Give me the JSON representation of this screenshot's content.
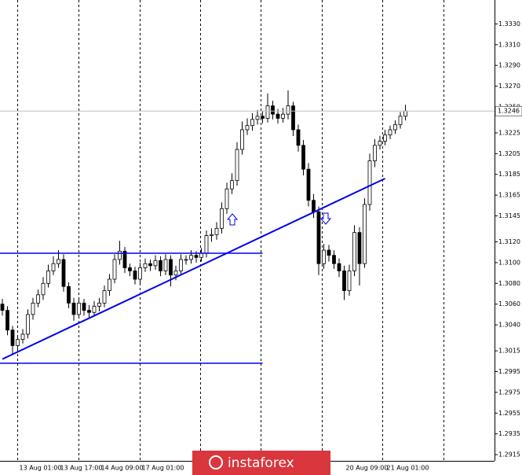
{
  "chart_data": {
    "type": "candlestick",
    "categories": [
      null,
      null,
      null,
      "13 Aug 01:00",
      null,
      null,
      null,
      null,
      null,
      null,
      null,
      "13 Aug 17:00",
      null,
      null,
      null,
      null,
      null,
      null,
      null,
      "14 Aug 09:00",
      null,
      null,
      null,
      null,
      null,
      null,
      null,
      "17 Aug 01:00",
      null,
      null,
      null,
      null,
      null,
      null,
      null,
      null,
      null,
      null,
      null,
      null,
      null,
      null,
      null,
      null,
      null,
      null,
      null,
      null,
      null,
      null,
      null,
      null,
      null,
      null,
      null,
      null,
      null,
      null,
      null,
      null,
      null,
      null,
      null,
      null,
      null,
      null,
      null,
      "20 Aug 09:00",
      null,
      null,
      null,
      null,
      null,
      null,
      null,
      "21 Aug 01:00",
      null,
      null,
      null,
      null
    ],
    "open": [
      1.306,
      1.3054,
      1.3035,
      1.302,
      1.3026,
      1.3031,
      1.305,
      1.3061,
      1.3069,
      1.308,
      1.3092,
      1.3099,
      1.3103,
      1.3077,
      1.3061,
      1.305,
      1.3061,
      1.3054,
      1.3052,
      1.3058,
      1.3061,
      1.3073,
      1.3084,
      1.3103,
      1.3111,
      1.3095,
      1.3092,
      1.3084,
      1.3095,
      1.3099,
      1.3097,
      1.3102,
      1.3092,
      1.3103,
      1.3088,
      1.3092,
      1.3103,
      1.3103,
      1.3107,
      1.3105,
      1.3109,
      1.3126,
      1.3127,
      1.3133,
      1.3152,
      1.3171,
      1.3179,
      1.3209,
      1.3228,
      1.3232,
      1.3238,
      1.3241,
      1.3239,
      1.3251,
      1.3243,
      1.3239,
      1.3243,
      1.3251,
      1.3228,
      1.3213,
      1.319,
      1.316,
      1.3149,
      1.3099,
      1.3112,
      1.3107,
      1.3099,
      1.3092,
      1.3073,
      1.3092,
      1.3129,
      1.3099,
      1.3156,
      1.3198,
      1.3213,
      1.3217,
      1.3223,
      1.3228,
      1.3233,
      1.3241
    ],
    "high": [
      1.3065,
      1.3058,
      1.3039,
      1.303,
      1.3036,
      1.3055,
      1.3066,
      1.3074,
      1.3086,
      1.3098,
      1.3106,
      1.3112,
      1.3108,
      1.3081,
      1.3066,
      1.3066,
      1.3065,
      1.3059,
      1.3063,
      1.3066,
      1.3078,
      1.3089,
      1.3108,
      1.3121,
      1.3115,
      1.3099,
      1.3096,
      1.31,
      1.3104,
      1.3103,
      1.3107,
      1.3106,
      1.3108,
      1.3107,
      1.3097,
      1.3108,
      1.3107,
      1.3112,
      1.3111,
      1.3114,
      1.3131,
      1.3133,
      1.3139,
      1.3158,
      1.3177,
      1.3186,
      1.3216,
      1.3236,
      1.3239,
      1.3244,
      1.3247,
      1.3246,
      1.3263,
      1.3256,
      1.3248,
      1.3249,
      1.3266,
      1.3255,
      1.3233,
      1.3218,
      1.3196,
      1.3166,
      1.3154,
      1.3118,
      1.3117,
      1.3112,
      1.3104,
      1.3097,
      1.3098,
      1.3136,
      1.3134,
      1.3162,
      1.3205,
      1.3219,
      1.3222,
      1.3228,
      1.3232,
      1.3237,
      1.3245,
      1.3252
    ],
    "low": [
      1.3049,
      1.303,
      1.3012,
      1.3016,
      1.3022,
      1.3027,
      1.3045,
      1.3057,
      1.3064,
      1.3076,
      1.3088,
      1.3095,
      1.3072,
      1.3056,
      1.3044,
      1.3046,
      1.3049,
      1.3046,
      1.3048,
      1.3053,
      1.3057,
      1.3068,
      1.308,
      1.3098,
      1.309,
      1.3087,
      1.3079,
      1.308,
      1.3091,
      1.3092,
      1.3093,
      1.3087,
      1.3088,
      1.3077,
      1.3083,
      1.3088,
      1.3098,
      1.3099,
      1.31,
      1.3101,
      1.3105,
      1.312,
      1.3122,
      1.3128,
      1.3147,
      1.3166,
      1.3174,
      1.3204,
      1.3223,
      1.3227,
      1.3233,
      1.3234,
      1.3235,
      1.3238,
      1.3234,
      1.3235,
      1.3238,
      1.3222,
      1.3207,
      1.3184,
      1.3154,
      1.3143,
      1.3088,
      1.3094,
      1.3101,
      1.3094,
      1.3086,
      1.3064,
      1.3068,
      1.3087,
      1.3078,
      1.3095,
      1.315,
      1.3192,
      1.3209,
      1.3213,
      1.3219,
      1.3224,
      1.3229,
      1.3237
    ],
    "close": [
      1.3054,
      1.3035,
      1.302,
      1.3026,
      1.3031,
      1.305,
      1.3061,
      1.3069,
      1.308,
      1.3092,
      1.3099,
      1.3103,
      1.3077,
      1.3061,
      1.305,
      1.3061,
      1.3054,
      1.3052,
      1.3058,
      1.3061,
      1.3073,
      1.3084,
      1.3103,
      1.3111,
      1.3095,
      1.3092,
      1.3084,
      1.3095,
      1.3099,
      1.3097,
      1.3102,
      1.3092,
      1.3103,
      1.3088,
      1.3092,
      1.3103,
      1.3103,
      1.3107,
      1.3105,
      1.3109,
      1.3126,
      1.3127,
      1.3133,
      1.3152,
      1.3171,
      1.3179,
      1.3209,
      1.3228,
      1.3232,
      1.3238,
      1.3241,
      1.3239,
      1.3251,
      1.3243,
      1.3239,
      1.3243,
      1.3251,
      1.3228,
      1.3213,
      1.319,
      1.316,
      1.3149,
      1.3099,
      1.3112,
      1.3107,
      1.3099,
      1.3092,
      1.3073,
      1.3092,
      1.3129,
      1.3099,
      1.3156,
      1.3198,
      1.3213,
      1.3217,
      1.3223,
      1.3228,
      1.3233,
      1.3241,
      1.3246
    ],
    "ylim": [
      1.2909,
      1.3353
    ],
    "yticks": [
      {
        "value": 1.333,
        "label": "1.3330"
      },
      {
        "value": 1.331,
        "label": "1.3310"
      },
      {
        "value": 1.329,
        "label": "1.3290"
      },
      {
        "value": 1.327,
        "label": "1.3270"
      },
      {
        "value": 1.325,
        "label": "1.3250"
      },
      1.3225,
      1.3205,
      1.3185,
      1.3165,
      1.3145,
      {
        "value": 1.312,
        "label": "1.3120"
      },
      {
        "value": 1.31,
        "label": "1.3100"
      },
      {
        "value": 1.308,
        "label": "1.3080"
      },
      {
        "value": 1.306,
        "label": "1.3060"
      },
      {
        "value": 1.304,
        "label": "1.3040"
      },
      1.3015,
      1.2995,
      1.2975,
      1.2955,
      1.2935,
      1.2915
    ],
    "current_price": 1.3246,
    "horizontal_lines": [
      {
        "value": 1.3109,
        "x_end": 51
      },
      {
        "value": 1.3003,
        "x_end": 51
      }
    ],
    "trend_line": {
      "x": [
        0,
        75
      ],
      "y": [
        1.3007,
        1.3181
      ]
    },
    "line_color": "#0000ee",
    "watermark": "instaforex"
  }
}
